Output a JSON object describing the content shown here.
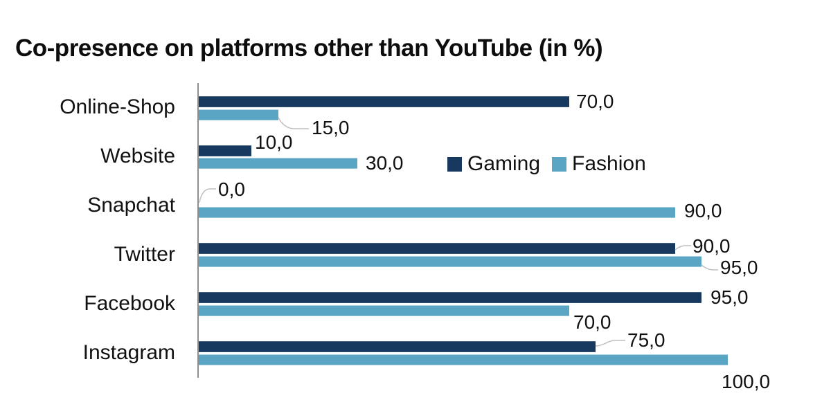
{
  "title": "Co-presence on platforms other than YouTube (in %)",
  "chart_data": {
    "type": "bar",
    "orientation": "horizontal",
    "title": "Co-presence on platforms other than YouTube (in %)",
    "categories": [
      "Online-Shop",
      "Website",
      "Snapchat",
      "Twitter",
      "Facebook",
      "Instagram"
    ],
    "series": [
      {
        "name": "Gaming",
        "color": "#17395F",
        "values": [
          70,
          10,
          0,
          90,
          95,
          75
        ],
        "labels": [
          "70,0",
          "10,0",
          "0,0",
          "90,0",
          "95,0",
          "75,0"
        ]
      },
      {
        "name": "Fashion",
        "color": "#5AA5C4",
        "values": [
          15,
          30,
          90,
          95,
          70,
          100
        ],
        "labels": [
          "15,0",
          "30,0",
          "90,0",
          "95,0",
          "70,0",
          "100,0"
        ]
      }
    ],
    "xlim": [
      0,
      100
    ],
    "decimal_separator": ",",
    "value_decimals": 1,
    "grid": false,
    "legend_position": "center-right",
    "background": "#FFFFFF"
  },
  "colors": {
    "title_text": "#0D0D0D",
    "label_text": "#111111",
    "axis_line": "#8F8F8F",
    "leader_line": "#BFBFBF"
  }
}
